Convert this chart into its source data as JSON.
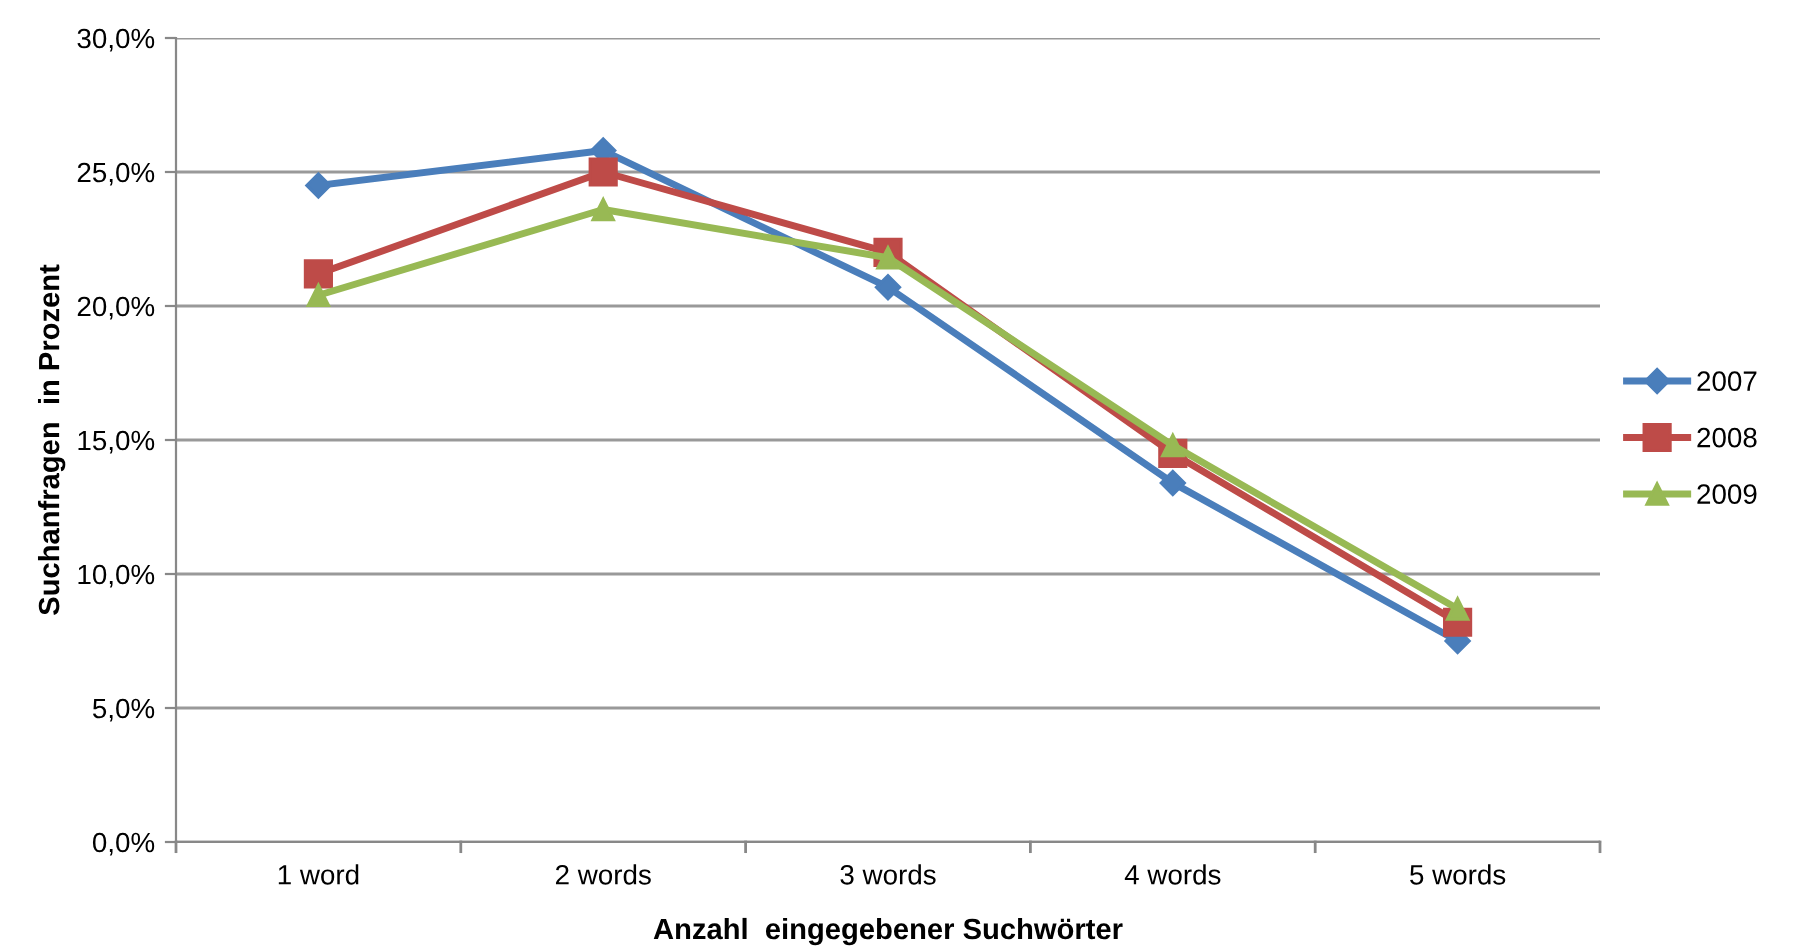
{
  "chart_data": {
    "type": "line",
    "xlabel": "Anzahl  eingegebener Suchwörter",
    "ylabel": "Suchanfragen  in Prozent",
    "categories": [
      "1 word",
      "2 words",
      "3 words",
      "4 words",
      "5 words"
    ],
    "series": [
      {
        "name": "2007",
        "color": "#4a7ebb",
        "marker": "diamond",
        "values": [
          24.5,
          25.8,
          20.7,
          13.4,
          7.5
        ]
      },
      {
        "name": "2008",
        "color": "#be4b48",
        "marker": "square",
        "values": [
          21.2,
          25.0,
          22.0,
          14.5,
          8.2
        ]
      },
      {
        "name": "2009",
        "color": "#98b954",
        "marker": "triangle",
        "values": [
          20.4,
          23.6,
          21.8,
          14.8,
          8.7
        ]
      }
    ],
    "ylim": [
      0,
      30
    ],
    "yticks": [
      {
        "value": 0,
        "label": "0,0%"
      },
      {
        "value": 5,
        "label": "5,0%"
      },
      {
        "value": 10,
        "label": "10,0%"
      },
      {
        "value": 15,
        "label": "15,0%"
      },
      {
        "value": 20,
        "label": "20,0%"
      },
      {
        "value": 25,
        "label": "25,0%"
      },
      {
        "value": 30,
        "label": "30,0%"
      }
    ],
    "grid": "y",
    "legend": "right",
    "line_style": "solid"
  }
}
